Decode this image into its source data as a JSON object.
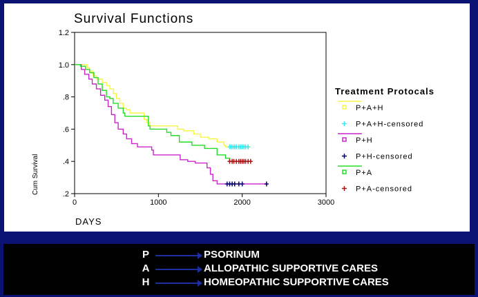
{
  "chart_data": {
    "type": "line",
    "title": "Survival Functions",
    "xlabel": "DAYS",
    "ylabel": "Cum Survival",
    "xlim": [
      0,
      3000
    ],
    "ylim": [
      0.2,
      1.2
    ],
    "x_ticks": [
      0,
      1000,
      2000,
      3000
    ],
    "x_tick_labels": [
      "0",
      "1000",
      "2000",
      "3000"
    ],
    "y_ticks": [
      0.2,
      0.4,
      0.6,
      0.8,
      1.0,
      1.2
    ],
    "y_tick_labels": [
      ".2",
      ".4",
      ".6",
      ".8",
      "1.0",
      "1.2"
    ],
    "grid": false,
    "legend_title": "Treatment Protocals",
    "legend_position": "right",
    "series": [
      {
        "name": "P+A+H",
        "color": "#f5f542",
        "steps": [
          [
            0,
            1.0
          ],
          [
            100,
            1.0
          ],
          [
            150,
            0.98
          ],
          [
            180,
            0.96
          ],
          [
            220,
            0.93
          ],
          [
            260,
            0.91
          ],
          [
            330,
            0.89
          ],
          [
            380,
            0.87
          ],
          [
            420,
            0.85
          ],
          [
            460,
            0.82
          ],
          [
            500,
            0.79
          ],
          [
            540,
            0.76
          ],
          [
            580,
            0.73
          ],
          [
            620,
            0.72
          ],
          [
            660,
            0.7
          ],
          [
            800,
            0.7
          ],
          [
            830,
            0.66
          ],
          [
            860,
            0.64
          ],
          [
            900,
            0.62
          ],
          [
            1200,
            0.62
          ],
          [
            1230,
            0.6
          ],
          [
            1300,
            0.59
          ],
          [
            1420,
            0.57
          ],
          [
            1500,
            0.55
          ],
          [
            1600,
            0.54
          ],
          [
            1700,
            0.52
          ],
          [
            1780,
            0.5
          ],
          [
            1800,
            0.49
          ],
          [
            2100,
            0.49
          ]
        ],
        "censored_name": "P+A+H-censored",
        "censored_color": "#33e8f0",
        "censored_y": 0.49,
        "censored_x": [
          1850,
          1870,
          1890,
          1910,
          1930,
          1960,
          1980,
          2000,
          2020,
          2040,
          2070
        ]
      },
      {
        "name": "P+H",
        "color": "#cc22cc",
        "steps": [
          [
            0,
            1.0
          ],
          [
            80,
            0.97
          ],
          [
            120,
            0.94
          ],
          [
            170,
            0.91
          ],
          [
            210,
            0.88
          ],
          [
            260,
            0.85
          ],
          [
            310,
            0.81
          ],
          [
            360,
            0.78
          ],
          [
            400,
            0.74
          ],
          [
            440,
            0.69
          ],
          [
            480,
            0.64
          ],
          [
            520,
            0.6
          ],
          [
            580,
            0.57
          ],
          [
            620,
            0.54
          ],
          [
            680,
            0.51
          ],
          [
            750,
            0.49
          ],
          [
            900,
            0.49
          ],
          [
            920,
            0.47
          ],
          [
            940,
            0.44
          ],
          [
            1200,
            0.44
          ],
          [
            1260,
            0.41
          ],
          [
            1350,
            0.4
          ],
          [
            1440,
            0.39
          ],
          [
            1550,
            0.39
          ],
          [
            1580,
            0.36
          ],
          [
            1620,
            0.32
          ],
          [
            1650,
            0.28
          ],
          [
            1700,
            0.26
          ],
          [
            2300,
            0.26
          ]
        ],
        "censored_name": "P+H-censored",
        "censored_color": "#000066",
        "censored_y": 0.26,
        "censored_x": [
          1820,
          1850,
          1880,
          1910,
          1960,
          2000,
          2290
        ]
      },
      {
        "name": "P+A",
        "color": "#22dd22",
        "steps": [
          [
            0,
            1.0
          ],
          [
            70,
            0.99
          ],
          [
            130,
            0.97
          ],
          [
            180,
            0.95
          ],
          [
            230,
            0.92
          ],
          [
            280,
            0.88
          ],
          [
            330,
            0.84
          ],
          [
            380,
            0.8
          ],
          [
            420,
            0.79
          ],
          [
            460,
            0.76
          ],
          [
            520,
            0.73
          ],
          [
            580,
            0.7
          ],
          [
            600,
            0.68
          ],
          [
            850,
            0.68
          ],
          [
            880,
            0.62
          ],
          [
            900,
            0.6
          ],
          [
            1050,
            0.6
          ],
          [
            1100,
            0.58
          ],
          [
            1150,
            0.56
          ],
          [
            1250,
            0.52
          ],
          [
            1400,
            0.5
          ],
          [
            1550,
            0.48
          ],
          [
            1700,
            0.44
          ],
          [
            1800,
            0.42
          ],
          [
            1850,
            0.4
          ],
          [
            2100,
            0.4
          ]
        ],
        "censored_name": "P+A-censored",
        "censored_color": "#aa1111",
        "censored_y": 0.4,
        "censored_x": [
          1850,
          1880,
          1900,
          1930,
          1960,
          1980,
          2000,
          2020,
          2040,
          2070,
          2100
        ]
      }
    ]
  },
  "footer_legend": [
    {
      "letter": "P",
      "meaning": "PSORINUM"
    },
    {
      "letter": "A",
      "meaning": "ALLOPATHIC SUPPORTIVE CARES"
    },
    {
      "letter": "H",
      "meaning": "HOMEOPATHIC SUPPORTIVE CARES"
    }
  ]
}
